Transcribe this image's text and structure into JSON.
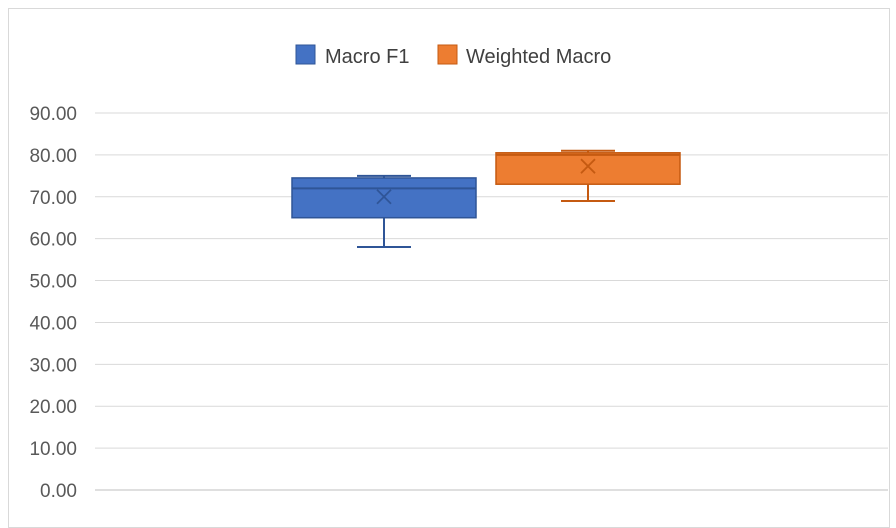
{
  "chart_data": {
    "type": "box",
    "title": "",
    "xlabel": "",
    "ylabel": "",
    "ylim": [
      0,
      90
    ],
    "yticks": [
      "0.00",
      "10.00",
      "20.00",
      "30.00",
      "40.00",
      "50.00",
      "60.00",
      "70.00",
      "80.00",
      "90.00"
    ],
    "grid": true,
    "legend_position": "top-center",
    "series": [
      {
        "name": "Macro F1",
        "color": "#4472c4",
        "border": "#2f5597",
        "min": 58,
        "q1": 65,
        "median": 72,
        "q3": 74.5,
        "max": 75,
        "mean": 70
      },
      {
        "name": "Weighted Macro",
        "color": "#ed7d31",
        "border": "#c55a11",
        "min": 69,
        "q1": 73,
        "median": 80,
        "q3": 80.5,
        "max": 81,
        "mean": 77.3
      }
    ]
  }
}
